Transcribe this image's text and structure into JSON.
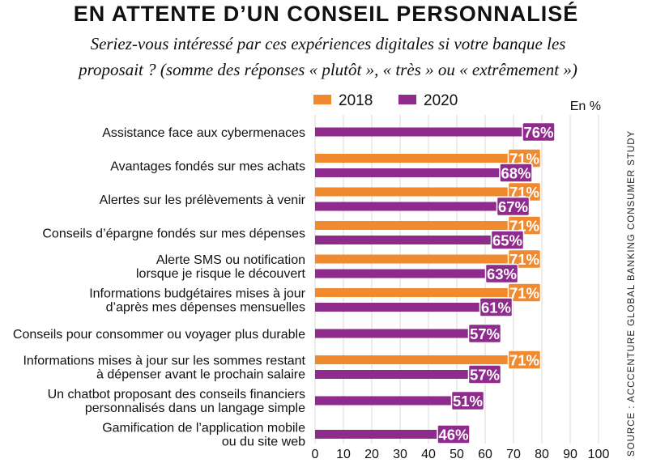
{
  "title": "EN ATTENTE D’UN CONSEIL PERSONNALISÉ",
  "subtitle_line1": "Seriez-vous intéressé par ces expériences digitales si votre banque les",
  "subtitle_line2": "proposait ? (somme des réponses « plutôt », « très » ou « extrêmement »)",
  "unit_label": "En %",
  "source": "SOURCE : ACCCENTURE GLOBAL BANKING CONSUMER STUDY",
  "colors": {
    "2018": "#f08a2f",
    "2020": "#8e2b8c"
  },
  "chart_data": {
    "type": "bar",
    "orientation": "horizontal",
    "xlim": [
      0,
      100
    ],
    "xticks": [
      0,
      10,
      20,
      30,
      40,
      50,
      60,
      70,
      80,
      90,
      100
    ],
    "legend_position": "top",
    "grid": true,
    "categories": [
      [
        "Assistance face aux cybermenaces"
      ],
      [
        "Avantages fondés sur mes achats"
      ],
      [
        "Alertes sur les prélèvements à venir"
      ],
      [
        "Conseils d’épargne fondés sur mes dépenses"
      ],
      [
        "Alerte SMS ou notification",
        "lorsque je risque le découvert"
      ],
      [
        "Informations budgétaires mises à jour",
        "d’après mes dépenses mensuelles"
      ],
      [
        "Conseils pour consommer ou voyager plus durable"
      ],
      [
        "Informations mises à jour sur les sommes restant",
        "à dépenser avant le prochain salaire"
      ],
      [
        "Un chatbot proposant des conseils financiers",
        "personnalisés dans un langage simple"
      ],
      [
        "Gamification de l’application mobile",
        "ou du site web"
      ]
    ],
    "series": [
      {
        "name": "2018",
        "values": [
          null,
          71,
          71,
          71,
          71,
          71,
          null,
          71,
          null,
          null
        ]
      },
      {
        "name": "2020",
        "values": [
          76,
          68,
          67,
          65,
          63,
          61,
          57,
          57,
          51,
          46
        ]
      }
    ]
  }
}
